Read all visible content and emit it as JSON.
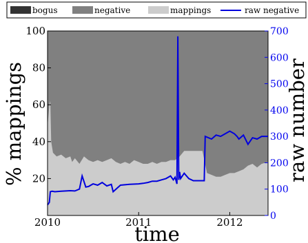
{
  "chart_data": {
    "type": "area",
    "xlabel": "time",
    "ylabel": "% mappings",
    "ylabel_right": "raw number",
    "x_ticks": [
      "2010",
      "2011",
      "2012"
    ],
    "y_ticks_left": [
      "20",
      "40",
      "60",
      "80",
      "100"
    ],
    "y_ticks_right": [
      "0",
      "100",
      "200",
      "300",
      "400",
      "500",
      "600",
      "700"
    ],
    "xlim": [
      2010.0,
      2012.42
    ],
    "ylim_left": [
      0,
      100
    ],
    "ylim_right": [
      0,
      700
    ],
    "legend": {
      "placement": "top",
      "entries": [
        {
          "name": "bogus",
          "color": "#333333",
          "kind": "patch"
        },
        {
          "name": "negative",
          "color": "#808080",
          "kind": "patch"
        },
        {
          "name": "mappings",
          "color": "#cccccc",
          "kind": "patch"
        },
        {
          "name": "raw negative",
          "color": "#0000dd",
          "kind": "line"
        }
      ]
    },
    "series": [
      {
        "name": "mappings",
        "axis": "left",
        "color": "#cccccc",
        "x": [
          2010.0,
          2010.02,
          2010.03,
          2010.04,
          2010.06,
          2010.1,
          2010.15,
          2010.2,
          2010.25,
          2010.27,
          2010.3,
          2010.35,
          2010.4,
          2010.45,
          2010.5,
          2010.55,
          2010.6,
          2010.65,
          2010.7,
          2010.75,
          2010.8,
          2010.85,
          2010.9,
          2010.95,
          2011.0,
          2011.05,
          2011.1,
          2011.15,
          2011.2,
          2011.25,
          2011.3,
          2011.35,
          2011.4,
          2011.45,
          2011.5,
          2011.55,
          2011.6,
          2011.65,
          2011.7,
          2011.75,
          2011.8,
          2011.85,
          2011.9,
          2011.95,
          2012.0,
          2012.05,
          2012.1,
          2012.15,
          2012.2,
          2012.25,
          2012.3,
          2012.35,
          2012.42
        ],
        "values": [
          48,
          60,
          62,
          40,
          34,
          32,
          33,
          31,
          32,
          29,
          31,
          28,
          32,
          30,
          29,
          30,
          29,
          30,
          31,
          29,
          28,
          29,
          28,
          30,
          29,
          28,
          28,
          29,
          28,
          29,
          29,
          30,
          30,
          32,
          35,
          35,
          35,
          35,
          35,
          23,
          22,
          21,
          21,
          22,
          23,
          23,
          24,
          25,
          27,
          28,
          26,
          28,
          29
        ]
      },
      {
        "name": "raw negative",
        "axis": "right",
        "color": "#0000dd",
        "x": [
          2010.0,
          2010.02,
          2010.03,
          2010.05,
          2010.08,
          2010.15,
          2010.25,
          2010.3,
          2010.35,
          2010.38,
          2010.42,
          2010.45,
          2010.5,
          2010.55,
          2010.6,
          2010.65,
          2010.7,
          2010.72,
          2010.8,
          2010.9,
          2011.0,
          2011.05,
          2011.1,
          2011.15,
          2011.2,
          2011.25,
          2011.3,
          2011.35,
          2011.38,
          2011.4,
          2011.42,
          2011.43,
          2011.44,
          2011.45,
          2011.46,
          2011.5,
          2011.55,
          2011.6,
          2011.65,
          2011.7,
          2011.72,
          2011.73,
          2011.8,
          2011.85,
          2011.9,
          2011.95,
          2012.0,
          2012.05,
          2012.08,
          2012.1,
          2012.15,
          2012.2,
          2012.25,
          2012.3,
          2012.35,
          2012.42
        ],
        "values": [
          40,
          50,
          90,
          92,
          90,
          92,
          94,
          93,
          100,
          150,
          108,
          110,
          120,
          115,
          125,
          112,
          118,
          90,
          115,
          118,
          120,
          122,
          125,
          130,
          130,
          135,
          140,
          150,
          135,
          145,
          120,
          680,
          135,
          165,
          140,
          160,
          140,
          132,
          132,
          132,
          132,
          300,
          290,
          305,
          300,
          310,
          320,
          310,
          300,
          290,
          305,
          270,
          295,
          290,
          300,
          300
        ]
      }
    ]
  }
}
